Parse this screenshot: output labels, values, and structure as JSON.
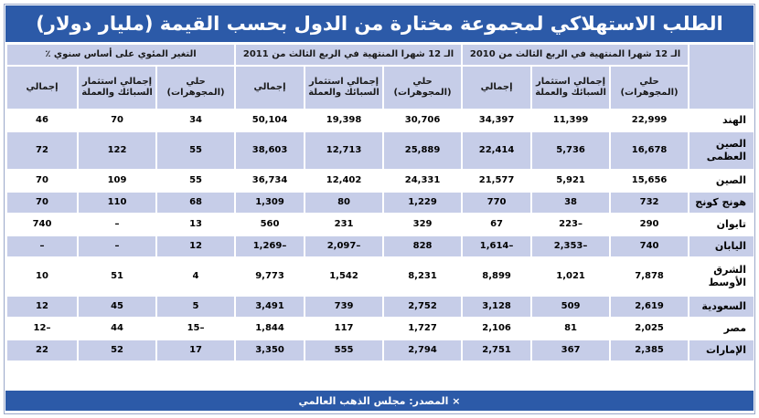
{
  "title": "الطلب الاستهلاكي لمجموعة مختارة من الدول بحسب القيمة (مليار دولار)",
  "group_headers": [
    "الـ 12 شهرا المنتهية في الربع الثالث من 2010",
    "الـ 12 شهرا المنتهية في الربع الثالث من 2011",
    "التغير المئوي على أساس سنوي ٪"
  ],
  "sub_headers": [
    "حلي (المجوهرات)",
    "إجمالي استثمار السبائك والعملة",
    "إجمالي",
    "حلي (المجوهرات)",
    "إجمالي استثمار السبائك والعملة",
    "إجمالي",
    "حلي (المجوهرات)",
    "إجمالي استثمار السبائك والعملة",
    "إجمالي"
  ],
  "rows": [
    {
      "country": "الهند",
      "values": [
        "22,999",
        "11,399",
        "34,397",
        "30,706",
        "19,398",
        "50,104",
        "34",
        "70",
        "46"
      ]
    },
    {
      "country": "الصين العظمى",
      "values": [
        "16,678",
        "5,736",
        "22,414",
        "25,889",
        "12,713",
        "38,603",
        "55",
        "122",
        "72"
      ]
    },
    {
      "country": "الصين",
      "values": [
        "15,656",
        "5,921",
        "21,577",
        "24,331",
        "12,402",
        "36,734",
        "55",
        "109",
        "70"
      ]
    },
    {
      "country": "هونج كونج",
      "values": [
        "732",
        "38",
        "770",
        "1,229",
        "80",
        "1,309",
        "68",
        "110",
        "70"
      ]
    },
    {
      "country": "تايوان",
      "values": [
        "290",
        "223–",
        "67",
        "329",
        "231",
        "560",
        "13",
        "–",
        "740"
      ]
    },
    {
      "country": "اليابان",
      "values": [
        "740",
        "2,353–",
        "1,614–",
        "828",
        "2,097–",
        "1,269–",
        "12",
        "–",
        "–"
      ]
    },
    {
      "country": "الشرق الأوسط",
      "values": [
        "7,878",
        "1,021",
        "8,899",
        "8,231",
        "1,542",
        "9,773",
        "4",
        "51",
        "10"
      ]
    },
    {
      "country": "السعودية",
      "values": [
        "2,619",
        "509",
        "3,128",
        "2,752",
        "739",
        "3,491",
        "5",
        "45",
        "12"
      ]
    },
    {
      "country": "مصر",
      "values": [
        "2,025",
        "81",
        "2,106",
        "1,727",
        "117",
        "1,844",
        "15–",
        "44",
        "12–"
      ]
    },
    {
      "country": "الإمارات",
      "values": [
        "2,385",
        "367",
        "2,751",
        "2,794",
        "555",
        "3,350",
        "17",
        "52",
        "22"
      ]
    }
  ],
  "source": "× المصدر: مجلس الذهب العالمي",
  "colors": {
    "accent": "#2c5aa8",
    "band": "#c6cde8",
    "text": "#1a1a1a"
  }
}
